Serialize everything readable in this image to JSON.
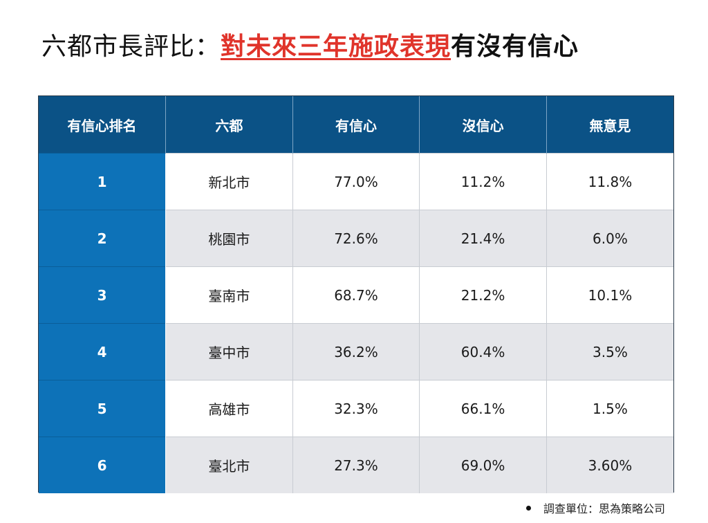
{
  "title": {
    "part1": "六都市長評比：",
    "part2": "對未來三年施政表現",
    "part3": "有沒有信心"
  },
  "colors": {
    "header_bg": "#0b5286",
    "rank_bg": "#0d72b8",
    "highlight": "#e0342b",
    "stripe": "#e5e6ea"
  },
  "chart_data": {
    "type": "table",
    "columns": [
      "有信心排名",
      "六都",
      "有信心",
      "沒信心",
      "無意見"
    ],
    "rows": [
      {
        "rank": "1",
        "city": "新北市",
        "confident": "77.0%",
        "not_confident": "11.2%",
        "no_opinion": "11.8%"
      },
      {
        "rank": "2",
        "city": "桃園市",
        "confident": "72.6%",
        "not_confident": "21.4%",
        "no_opinion": "6.0%"
      },
      {
        "rank": "3",
        "city": "臺南市",
        "confident": "68.7%",
        "not_confident": "21.2%",
        "no_opinion": "10.1%"
      },
      {
        "rank": "4",
        "city": "臺中市",
        "confident": "36.2%",
        "not_confident": "60.4%",
        "no_opinion": "3.5%"
      },
      {
        "rank": "5",
        "city": "高雄市",
        "confident": "32.3%",
        "not_confident": "66.1%",
        "no_opinion": "1.5%"
      },
      {
        "rank": "6",
        "city": "臺北市",
        "confident": "27.3%",
        "not_confident": "69.0%",
        "no_opinion": "3.60%"
      }
    ]
  },
  "source": "調查單位：思為策略公司"
}
